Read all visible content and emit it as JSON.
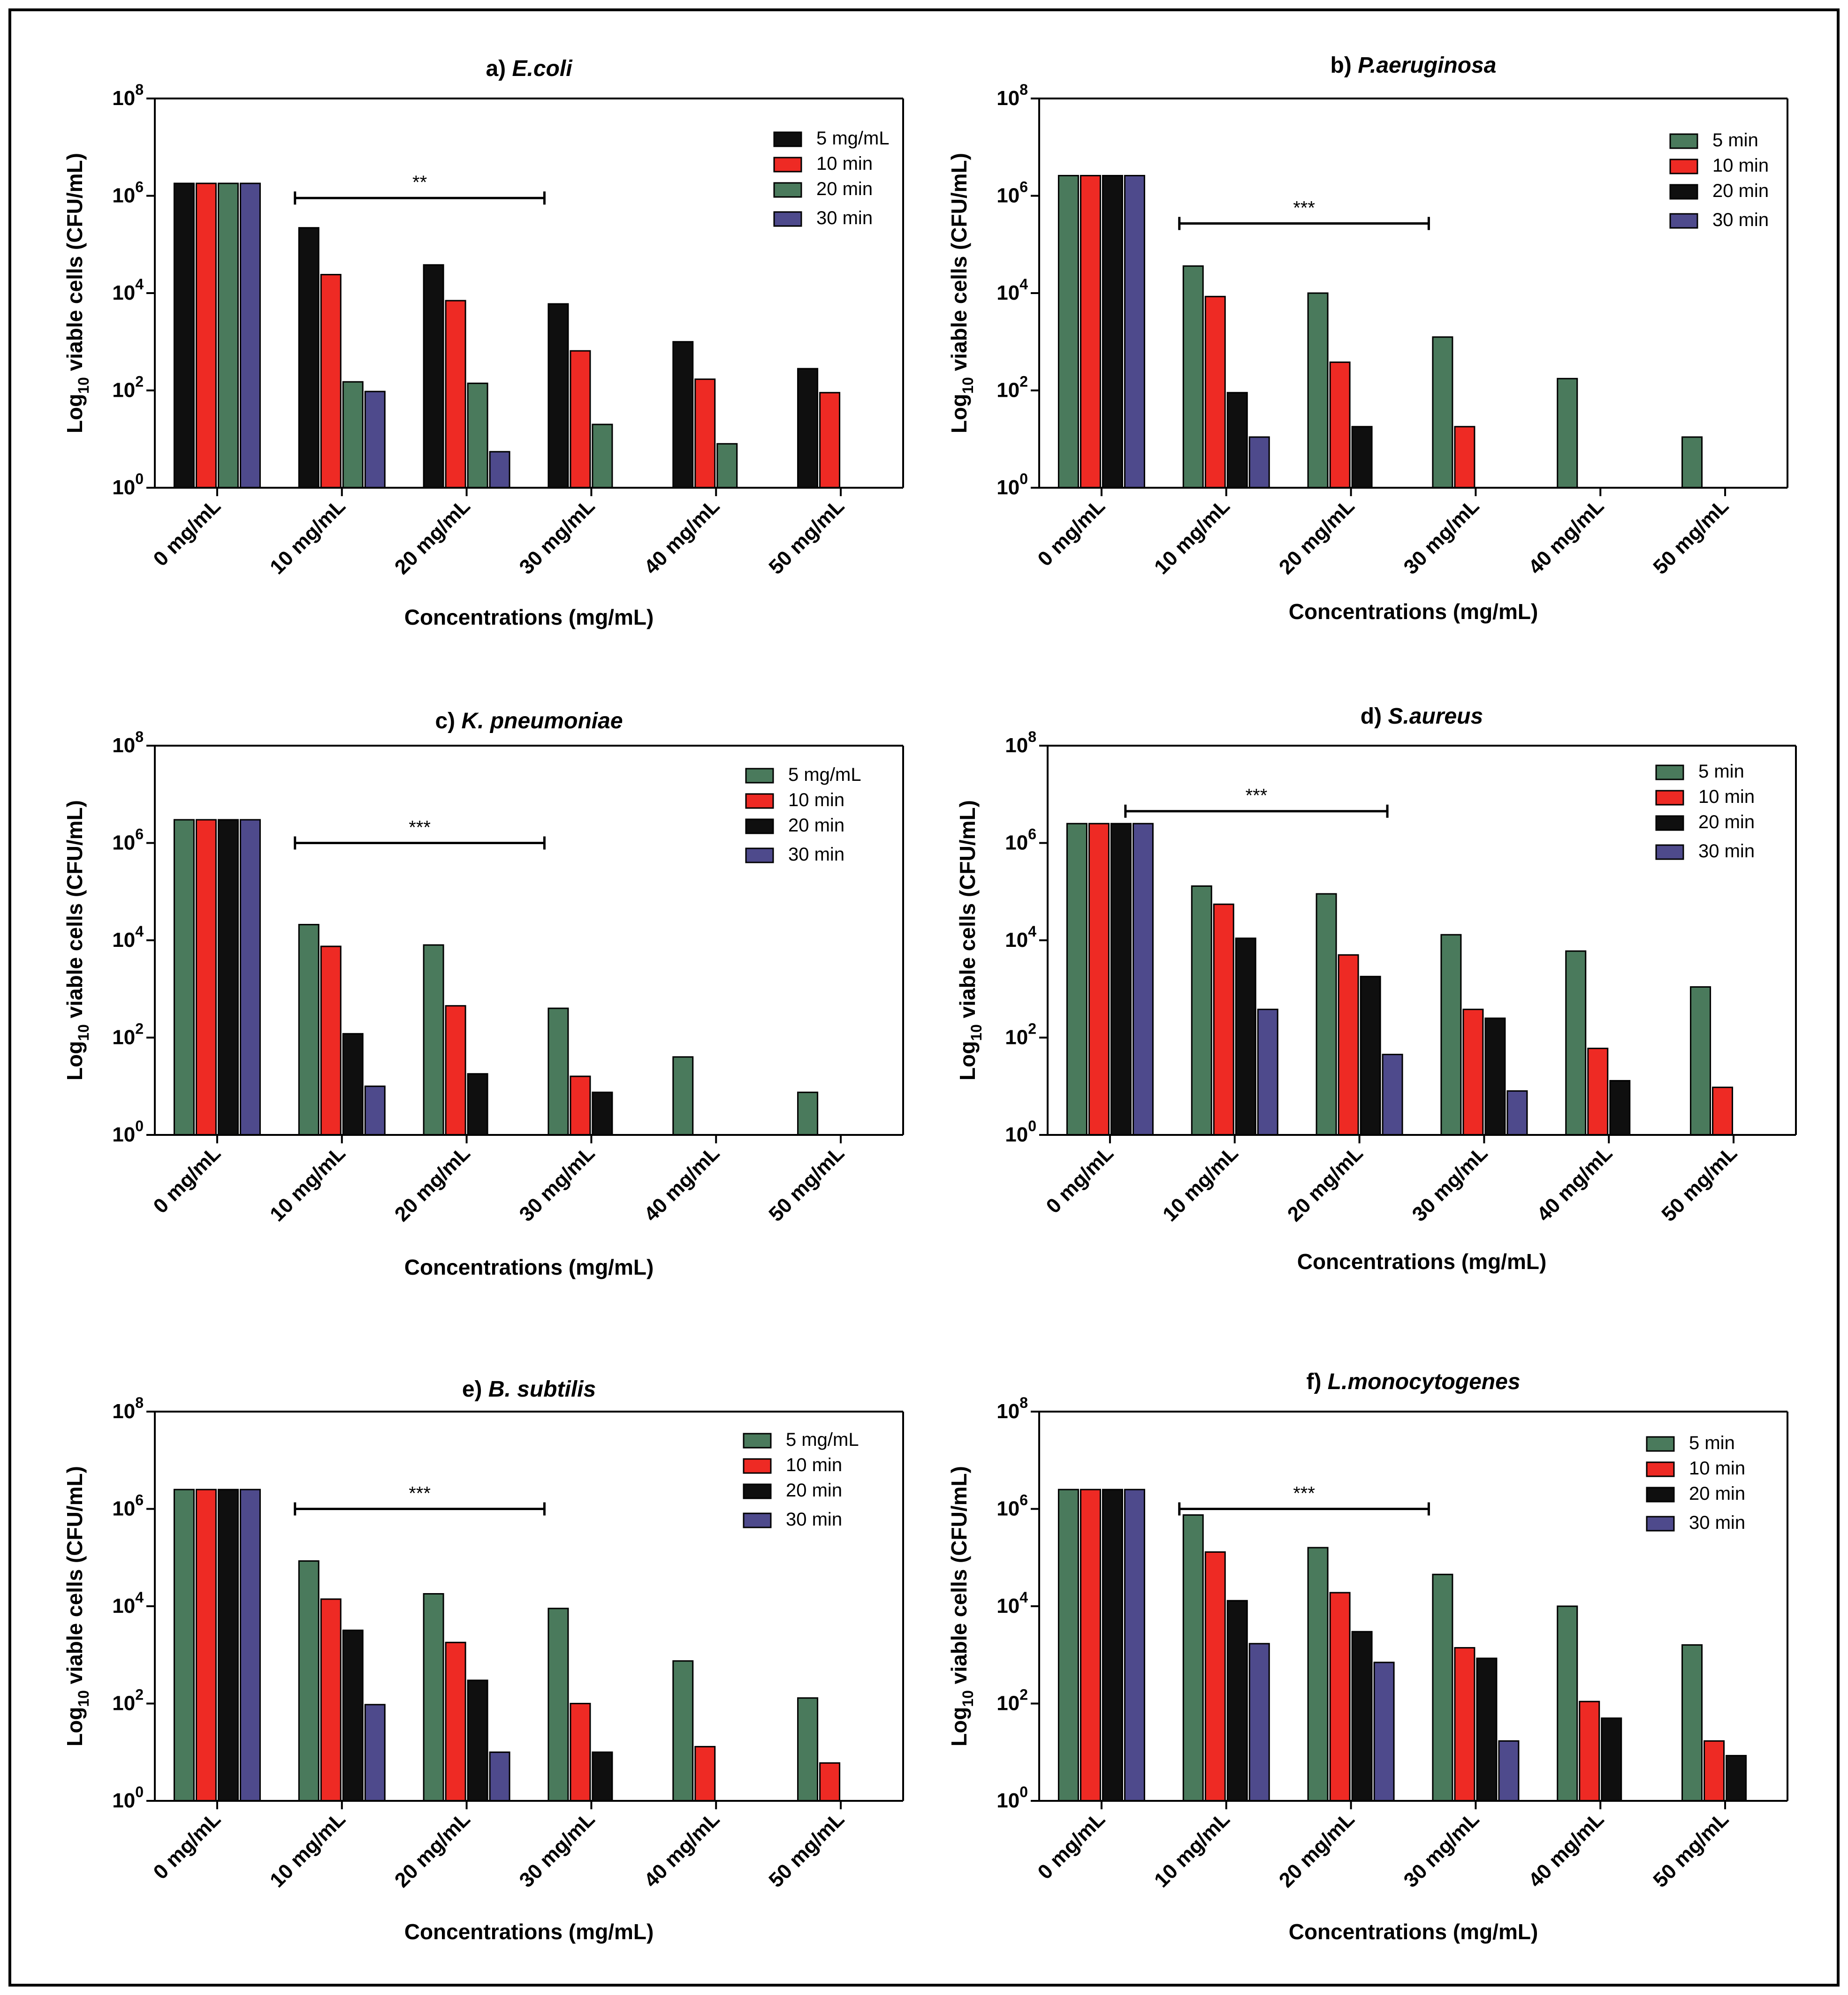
{
  "colors": {
    "black": "#0f0f0f",
    "red": "#ee2a24",
    "green": "#4a7a5c",
    "purple": "#4e4a8c"
  },
  "chart_data": [
    {
      "type": "bar",
      "title_prefix": "a)",
      "title_name": "E.coli",
      "xlabel": "Concentrations (mg/mL)",
      "ylabel": "Log10 viable cells (CFU/mL)",
      "yscale": "log",
      "ylim": [
        1,
        100000000
      ],
      "categories": [
        "0 mg/mL",
        "10 mg/mL",
        "20 mg/mL",
        "30 mg/mL",
        "40 mg/mL",
        "50 mg/mL"
      ],
      "series": [
        {
          "name": "5 mg/mL",
          "color": "black",
          "values": [
            1800000,
            220000,
            38000,
            6000,
            1000,
            280
          ]
        },
        {
          "name": "10 min",
          "color": "red",
          "values": [
            1800000,
            24000,
            7000,
            650,
            170,
            90
          ]
        },
        {
          "name": "20 min",
          "color": "green",
          "values": [
            1800000,
            150,
            140,
            20,
            8,
            null
          ]
        },
        {
          "name": "30 min",
          "color": "purple",
          "values": [
            1800000,
            95,
            5.5,
            null,
            null,
            null
          ]
        }
      ],
      "annotation": {
        "text": "**",
        "from": 1,
        "to": 3,
        "level": 900000
      }
    },
    {
      "type": "bar",
      "title_prefix": "b)",
      "title_name": "P.aeruginosa",
      "xlabel": "Concentrations (mg/mL)",
      "ylabel": "Log10 viable cells (CFU/mL)",
      "yscale": "log",
      "ylim": [
        1,
        100000000
      ],
      "categories": [
        "0 mg/mL",
        "10 mg/mL",
        "20 mg/mL",
        "30 mg/mL",
        "40 mg/mL",
        "50 mg/mL"
      ],
      "series": [
        {
          "name": "5 min",
          "color": "green",
          "values": [
            2600000,
            36000,
            10000,
            1250,
            175,
            11
          ]
        },
        {
          "name": "10 min",
          "color": "red",
          "values": [
            2600000,
            8500,
            380,
            18,
            null,
            null
          ]
        },
        {
          "name": "20 min",
          "color": "black",
          "values": [
            2600000,
            90,
            18,
            null,
            null,
            null
          ]
        },
        {
          "name": "30 min",
          "color": "purple",
          "values": [
            2600000,
            11,
            null,
            null,
            null,
            null
          ]
        }
      ],
      "annotation": {
        "text": "***",
        "from": 1,
        "to": 3,
        "level": 270000
      }
    },
    {
      "type": "bar",
      "title_prefix": "c)",
      "title_name": "K. pneumoniae",
      "xlabel": "Concentrations (mg/mL)",
      "ylabel": "Log10 viable cells (CFU/mL)",
      "yscale": "log",
      "ylim": [
        1,
        100000000
      ],
      "categories": [
        "0 mg/mL",
        "10 mg/mL",
        "20 mg/mL",
        "30 mg/mL",
        "40 mg/mL",
        "50 mg/mL"
      ],
      "series": [
        {
          "name": "5 mg/mL",
          "color": "green",
          "values": [
            3000000,
            21000,
            8000,
            400,
            40,
            7.5
          ]
        },
        {
          "name": "10 min",
          "color": "red",
          "values": [
            3000000,
            7500,
            450,
            16,
            null,
            null
          ]
        },
        {
          "name": "20 min",
          "color": "black",
          "values": [
            3000000,
            120,
            18,
            7.5,
            null,
            null
          ]
        },
        {
          "name": "30 min",
          "color": "purple",
          "values": [
            3000000,
            10,
            null,
            null,
            null,
            null
          ]
        }
      ],
      "annotation": {
        "text": "***",
        "from": 1,
        "to": 3,
        "level": 1000000
      }
    },
    {
      "type": "bar",
      "title_prefix": "d)",
      "title_name": "S.aureus",
      "xlabel": "Concentrations (mg/mL)",
      "ylabel": "Log10 viable cells (CFU/mL)",
      "yscale": "log",
      "ylim": [
        1,
        100000000
      ],
      "categories": [
        "0 mg/mL",
        "10 mg/mL",
        "20 mg/mL",
        "30 mg/mL",
        "40 mg/mL",
        "50 mg/mL"
      ],
      "series": [
        {
          "name": "5 min",
          "color": "green",
          "values": [
            2500000,
            130000,
            90000,
            13000,
            6000,
            1100
          ]
        },
        {
          "name": "10 min",
          "color": "red",
          "values": [
            2500000,
            55000,
            5000,
            380,
            60,
            9.5
          ]
        },
        {
          "name": "20 min",
          "color": "black",
          "values": [
            2500000,
            11000,
            1800,
            250,
            13,
            null
          ]
        },
        {
          "name": "30 min",
          "color": "purple",
          "values": [
            2500000,
            380,
            45,
            8,
            null,
            null
          ]
        }
      ],
      "annotation": {
        "text": "***",
        "from": 0.5,
        "to": 2.6,
        "level": 4500000
      }
    },
    {
      "type": "bar",
      "title_prefix": "e)",
      "title_name": "B. subtilis",
      "xlabel": "Concentrations (mg/mL)",
      "ylabel": "Log10 viable cells (CFU/mL)",
      "yscale": "log",
      "ylim": [
        1,
        100000000
      ],
      "categories": [
        "0 mg/mL",
        "10 mg/mL",
        "20 mg/mL",
        "30 mg/mL",
        "40 mg/mL",
        "50 mg/mL"
      ],
      "series": [
        {
          "name": "5 mg/mL",
          "color": "green",
          "values": [
            2500000,
            85000,
            18000,
            9000,
            750,
            130
          ]
        },
        {
          "name": "10 min",
          "color": "red",
          "values": [
            2500000,
            14000,
            1800,
            100,
            13,
            6
          ]
        },
        {
          "name": "20 min",
          "color": "black",
          "values": [
            2500000,
            3200,
            300,
            10,
            null,
            null
          ]
        },
        {
          "name": "30 min",
          "color": "purple",
          "values": [
            2500000,
            95,
            10,
            null,
            null,
            null
          ]
        }
      ],
      "annotation": {
        "text": "***",
        "from": 1,
        "to": 3,
        "level": 1000000
      }
    },
    {
      "type": "bar",
      "title_prefix": "f)",
      "title_name": "L.monocytogenes",
      "xlabel": "Concentrations (mg/mL)",
      "ylabel": "Log10 viable cells (CFU/mL)",
      "yscale": "log",
      "ylim": [
        1,
        100000000
      ],
      "categories": [
        "0 mg/mL",
        "10 mg/mL",
        "20 mg/mL",
        "30 mg/mL",
        "40 mg/mL",
        "50 mg/mL"
      ],
      "series": [
        {
          "name": "5 min",
          "color": "green",
          "values": [
            2500000,
            750000,
            160000,
            45000,
            10000,
            1600
          ]
        },
        {
          "name": "10 min",
          "color": "red",
          "values": [
            2500000,
            130000,
            19000,
            1400,
            110,
            17
          ]
        },
        {
          "name": "20 min",
          "color": "black",
          "values": [
            2500000,
            13000,
            3000,
            850,
            50,
            8.5
          ]
        },
        {
          "name": "30 min",
          "color": "purple",
          "values": [
            2500000,
            1700,
            700,
            17,
            null,
            null
          ]
        }
      ],
      "annotation": {
        "text": "***",
        "from": 1,
        "to": 3,
        "level": 1000000
      }
    }
  ]
}
